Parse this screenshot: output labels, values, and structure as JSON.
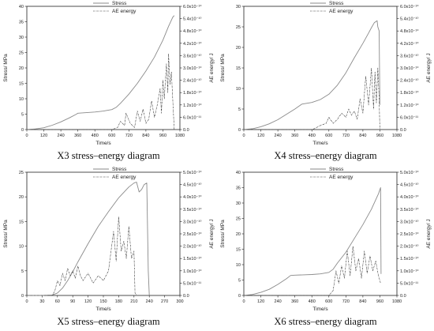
{
  "chart_data": [
    {
      "type": "line",
      "caption": "X3 stress–energy diagram",
      "xlabel": "Time/s",
      "ylabel_left": "Stress/ MPa",
      "ylabel_right": "AE energy/ J",
      "xlim": [
        0,
        1080
      ],
      "ylim_left": [
        0,
        40
      ],
      "ylim_right": [
        0,
        6e-10
      ],
      "x_ticks": [
        0,
        120,
        240,
        360,
        480,
        600,
        720,
        840,
        960,
        1080
      ],
      "y_ticks_left": [
        0,
        5,
        10,
        15,
        20,
        25,
        30,
        35,
        40
      ],
      "y_ticks_right": [
        "0.0",
        "6.0x10⁻¹¹",
        "1.2x10⁻¹⁰",
        "1.8x10⁻¹⁰",
        "2.4x10⁻¹⁰",
        "3.0x10⁻¹⁰",
        "3.6x10⁻¹⁰",
        "4.2x10⁻¹⁰",
        "4.8x10⁻¹⁰",
        "5.4x10⁻¹⁰",
        "6.0x10⁻¹⁰"
      ],
      "legend": [
        "Stress",
        "AE energy"
      ],
      "series": [
        {
          "name": "Stress",
          "axis": "left",
          "style": "solid",
          "x": [
            0,
            60,
            120,
            180,
            240,
            300,
            350,
            360,
            420,
            480,
            540,
            600,
            630,
            660,
            720,
            780,
            840,
            900,
            960,
            1000,
            1030,
            1040
          ],
          "y": [
            0,
            0.2,
            0.6,
            1.4,
            2.5,
            3.8,
            5.0,
            5.3,
            5.5,
            5.7,
            6.0,
            6.5,
            7.2,
            8.5,
            11.5,
            15.0,
            19.0,
            23.5,
            29.0,
            33.5,
            36.5,
            37.0
          ]
        },
        {
          "name": "AE energy",
          "axis": "right",
          "style": "dash-dot",
          "x": [
            0,
            120,
            240,
            360,
            480,
            600,
            640,
            660,
            690,
            700,
            730,
            760,
            780,
            800,
            820,
            840,
            860,
            880,
            900,
            920,
            940,
            950,
            960,
            970,
            985,
            995,
            1000,
            1010,
            1020,
            1030,
            1040
          ],
          "y": [
            0,
            0,
            0,
            0,
            0,
            0,
            1e-11,
            4e-11,
            2e-11,
            8e-11,
            3e-11,
            1e-11,
            9e-11,
            4e-11,
            1e-10,
            3e-11,
            5e-11,
            1.4e-10,
            6e-11,
            1.2e-10,
            2e-10,
            8e-11,
            2.4e-10,
            1.5e-10,
            3.2e-10,
            1.8e-10,
            3.7e-10,
            2.2e-10,
            2.8e-10,
            1.4e-10,
            0
          ]
        }
      ]
    },
    {
      "type": "line",
      "caption": "X4 stress–energy diagram",
      "xlabel": "Time/s",
      "ylabel_left": "Stress/ MPa",
      "ylabel_right": "AE energy/ J",
      "xlim": [
        0,
        1080
      ],
      "ylim_left": [
        0,
        30
      ],
      "ylim_right": [
        0,
        6e-10
      ],
      "x_ticks": [
        0,
        120,
        240,
        360,
        480,
        600,
        720,
        840,
        960,
        1080
      ],
      "y_ticks_left": [
        0,
        5,
        10,
        15,
        20,
        25,
        30
      ],
      "y_ticks_right": [
        "0.0",
        "6.0x10⁻¹¹",
        "1.2x10⁻¹⁰",
        "1.8x10⁻¹⁰",
        "2.4x10⁻¹⁰",
        "3.0x10⁻¹⁰",
        "3.6x10⁻¹⁰",
        "4.2x10⁻¹⁰",
        "4.8x10⁻¹⁰",
        "5.4x10⁻¹⁰",
        "6.0x10⁻¹⁰"
      ],
      "legend": [
        "Stress",
        "AE energy"
      ],
      "series": [
        {
          "name": "Stress",
          "axis": "left",
          "style": "solid",
          "x": [
            0,
            60,
            120,
            180,
            240,
            300,
            360,
            410,
            430,
            480,
            540,
            600,
            660,
            720,
            780,
            840,
            880,
            900,
            920,
            940,
            945,
            955,
            960
          ],
          "y": [
            0,
            0.2,
            0.7,
            1.4,
            2.4,
            3.7,
            5.0,
            6.2,
            6.3,
            6.6,
            7.3,
            8.6,
            10.8,
            13.8,
            17.5,
            21.0,
            23.5,
            24.8,
            26.0,
            26.5,
            25.0,
            24.0,
            6.0
          ]
        },
        {
          "name": "AE energy",
          "axis": "right",
          "style": "dash-dot",
          "x": [
            0,
            120,
            240,
            360,
            480,
            500,
            540,
            580,
            600,
            630,
            660,
            690,
            720,
            740,
            760,
            780,
            800,
            820,
            840,
            860,
            880,
            900,
            915,
            925,
            935,
            945,
            955,
            960
          ],
          "y": [
            0,
            0,
            0,
            0,
            0,
            5e-12,
            2e-11,
            3e-11,
            6e-11,
            3e-11,
            5e-11,
            8e-11,
            6e-11,
            1e-10,
            7e-11,
            9e-11,
            5e-11,
            1.5e-10,
            8e-11,
            2.6e-10,
            1.2e-10,
            3e-10,
            1e-10,
            2.8e-10,
            1.3e-10,
            3e-10,
            1.5e-10,
            0
          ]
        }
      ]
    },
    {
      "type": "line",
      "caption": "X5 stress–energy diagram",
      "xlabel": "Time/s",
      "ylabel_left": "Stress/ MPa",
      "ylabel_right": "AE energy/ J",
      "xlim": [
        0,
        300
      ],
      "ylim_left": [
        0,
        25
      ],
      "ylim_right": [
        0,
        5e-10
      ],
      "x_ticks": [
        0,
        30,
        60,
        90,
        120,
        150,
        180,
        210,
        240,
        270,
        300
      ],
      "y_ticks_left": [
        0,
        5,
        10,
        15,
        20,
        25
      ],
      "y_ticks_right": [
        "0.0",
        "5.0x10⁻¹¹",
        "1.0x10⁻¹⁰",
        "1.5x10⁻¹⁰",
        "2.0x10⁻¹⁰",
        "2.5x10⁻¹⁰",
        "3.0x10⁻¹⁰",
        "3.5x10⁻¹⁰",
        "4.0x10⁻¹⁰",
        "4.5x10⁻¹⁰",
        "5.0x10⁻¹⁰"
      ],
      "legend": [
        "Stress",
        "AE energy"
      ],
      "series": [
        {
          "name": "Stress",
          "axis": "left",
          "style": "solid",
          "x": [
            0,
            30,
            50,
            60,
            70,
            80,
            90,
            100,
            120,
            140,
            160,
            180,
            200,
            210,
            215,
            220,
            225,
            230,
            235,
            238,
            240
          ],
          "y": [
            0,
            0,
            0.1,
            0.5,
            1.5,
            3.0,
            4.8,
            6.8,
            10.5,
            14.0,
            17.0,
            19.8,
            22.0,
            22.8,
            23.0,
            21.0,
            21.5,
            22.5,
            22.8,
            5.0,
            0
          ]
        },
        {
          "name": "AE energy",
          "axis": "right",
          "style": "dash-dot",
          "x": [
            0,
            30,
            50,
            55,
            60,
            65,
            70,
            75,
            80,
            85,
            90,
            95,
            100,
            105,
            110,
            120,
            130,
            140,
            150,
            160,
            170,
            175,
            180,
            185,
            190,
            195,
            200,
            205,
            210,
            212,
            215
          ],
          "y": [
            0,
            0,
            0,
            2e-11,
            6e-11,
            4e-11,
            9e-11,
            6e-11,
            1.1e-10,
            8e-11,
            1e-10,
            7e-11,
            1.2e-10,
            8e-11,
            6e-11,
            9e-11,
            5e-11,
            8e-11,
            6e-11,
            1e-10,
            2.6e-10,
            1.4e-10,
            3.2e-10,
            1.8e-10,
            2.2e-10,
            1.5e-10,
            2.8e-10,
            1.5e-10,
            1.8e-10,
            1e-11,
            0
          ]
        }
      ]
    },
    {
      "type": "line",
      "caption": "X6 stress–energy diagram",
      "xlabel": "Time/s",
      "ylabel_left": "Stress/ MPa",
      "ylabel_right": "AE energy/ J",
      "xlim": [
        0,
        1080
      ],
      "ylim_left": [
        0,
        40
      ],
      "ylim_right": [
        0,
        5e-10
      ],
      "x_ticks": [
        0,
        120,
        240,
        360,
        480,
        600,
        720,
        840,
        960,
        1080
      ],
      "y_ticks_left": [
        0,
        5,
        10,
        15,
        20,
        25,
        30,
        35,
        40
      ],
      "y_ticks_right": [
        "0.0",
        "5.0x10⁻¹¹",
        "1.0x10⁻¹⁰",
        "1.5x10⁻¹⁰",
        "2.0x10⁻¹⁰",
        "2.5x10⁻¹⁰",
        "3.0x10⁻¹⁰",
        "3.5x10⁻¹⁰",
        "4.0x10⁻¹⁰",
        "4.5x10⁻¹⁰",
        "5.0x10⁻¹⁰"
      ],
      "legend": [
        "Stress",
        "AE energy"
      ],
      "series": [
        {
          "name": "Stress",
          "axis": "left",
          "style": "solid",
          "x": [
            0,
            60,
            120,
            180,
            240,
            300,
            330,
            360,
            420,
            480,
            540,
            600,
            630,
            660,
            720,
            780,
            840,
            900,
            950,
            965,
            968
          ],
          "y": [
            0,
            0.3,
            1.0,
            2.0,
            3.6,
            5.4,
            6.5,
            6.6,
            6.7,
            6.8,
            7.0,
            7.5,
            8.5,
            10.5,
            14.0,
            18.5,
            23.0,
            28.0,
            33.0,
            35.0,
            7.0
          ]
        },
        {
          "name": "AE energy",
          "axis": "right",
          "style": "dash-dot",
          "x": [
            0,
            120,
            240,
            360,
            480,
            600,
            630,
            650,
            670,
            690,
            710,
            730,
            750,
            770,
            790,
            810,
            830,
            850,
            870,
            890,
            910,
            930,
            950,
            965
          ],
          "y": [
            0,
            0,
            0,
            0,
            0,
            0,
            2e-11,
            1e-10,
            5e-11,
            1.2e-10,
            7e-11,
            1.8e-10,
            8e-11,
            2e-10,
            1e-10,
            1.5e-10,
            7e-11,
            1.8e-10,
            9e-11,
            1.6e-10,
            1e-10,
            1.4e-10,
            8e-11,
            5e-11
          ]
        }
      ]
    }
  ]
}
